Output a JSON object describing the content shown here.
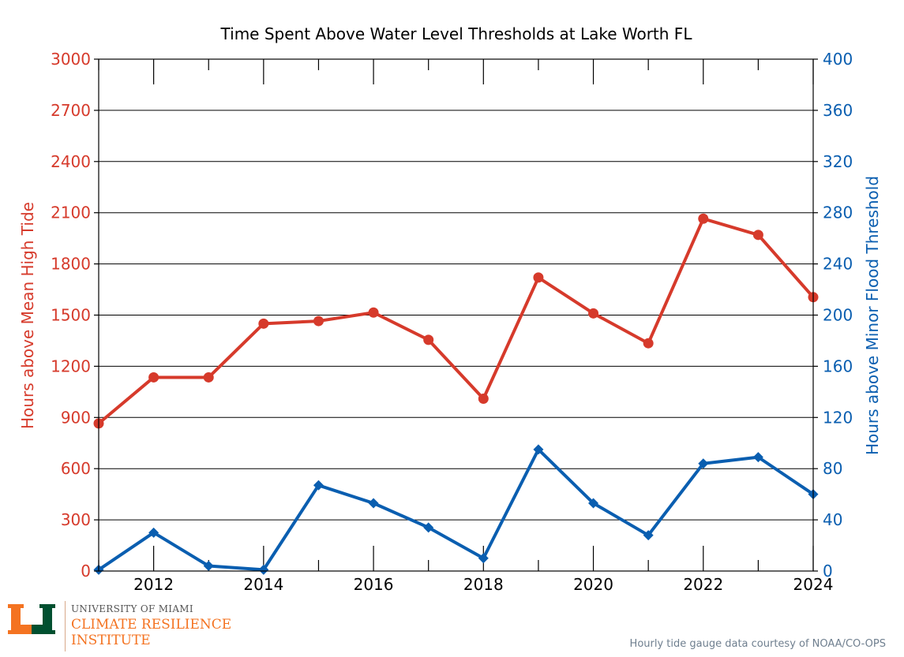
{
  "chart_data": {
    "type": "line",
    "title": "Time Spent Above Water Level Thresholds at Lake Worth FL",
    "x": [
      2011,
      2012,
      2013,
      2014,
      2015,
      2016,
      2017,
      2018,
      2019,
      2020,
      2021,
      2022,
      2023,
      2024
    ],
    "x_tick_labels": [
      "2012",
      "2014",
      "2016",
      "2018",
      "2020",
      "2022",
      "2024"
    ],
    "xlim": [
      2011,
      2024
    ],
    "ylabel_left": "Hours above Mean High Tide",
    "ylabel_right": "Hours above Minor Flood Threshold",
    "ylim_left": [
      0,
      3000
    ],
    "ylim_right": [
      0,
      400
    ],
    "y_ticks_left": [
      "0",
      "300",
      "600",
      "900",
      "1200",
      "1500",
      "1800",
      "2100",
      "2400",
      "2700",
      "3000"
    ],
    "y_ticks_right": [
      "0",
      "40",
      "80",
      "120",
      "160",
      "200",
      "240",
      "280",
      "320",
      "360",
      "400"
    ],
    "grid": "horizontal",
    "series": [
      {
        "axis": "left",
        "color": "#d63a2b",
        "marker": "circle",
        "values": [
          865,
          1135,
          1135,
          1450,
          1465,
          1515,
          1355,
          1010,
          1720,
          1510,
          1335,
          2065,
          1970,
          1605
        ]
      },
      {
        "axis": "right",
        "color": "#0a5eb0",
        "marker": "diamond",
        "values": [
          1,
          30,
          4,
          1,
          67,
          53,
          34,
          10,
          95,
          53,
          28,
          84,
          89,
          60
        ]
      }
    ]
  },
  "logo": {
    "university": "UNIVERSITY OF MIAMI",
    "institute_line1": "CLIMATE RESILIENCE",
    "institute_line2": "INSTITUTE"
  },
  "credit": "Hourly tide gauge data courtesy of NOAA/CO-OPS"
}
